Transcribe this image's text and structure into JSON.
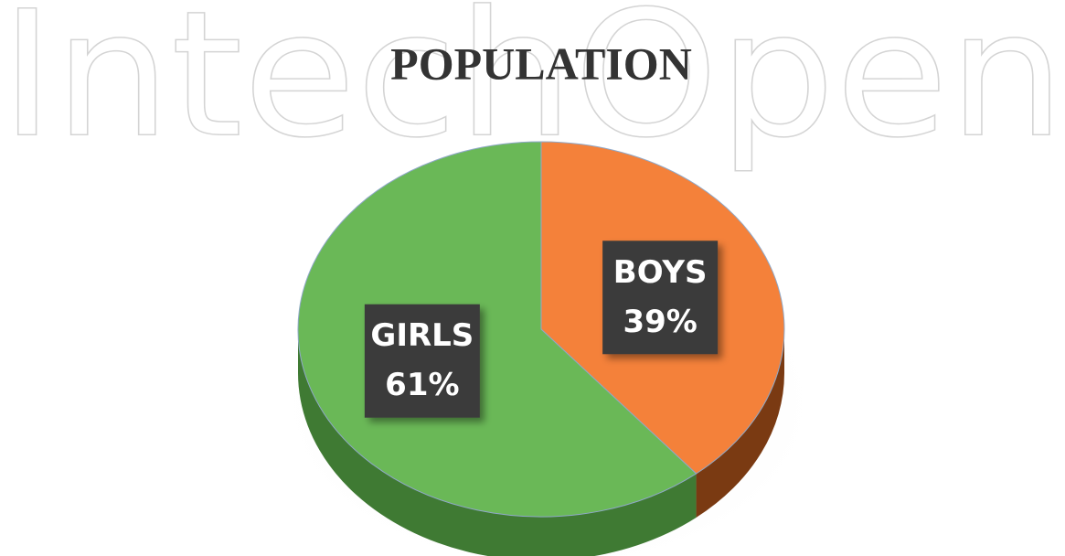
{
  "watermark": "IntechOpen",
  "chart_data": {
    "type": "pie",
    "title": "POPULATION",
    "categories": [
      "BOYS",
      "GIRLS"
    ],
    "values": [
      39,
      61
    ],
    "value_labels": [
      "39%",
      "61%"
    ],
    "colors": [
      "#f4813a",
      "#6ab857"
    ],
    "side_colors": [
      "#7a3a12",
      "#3f7a33"
    ]
  }
}
